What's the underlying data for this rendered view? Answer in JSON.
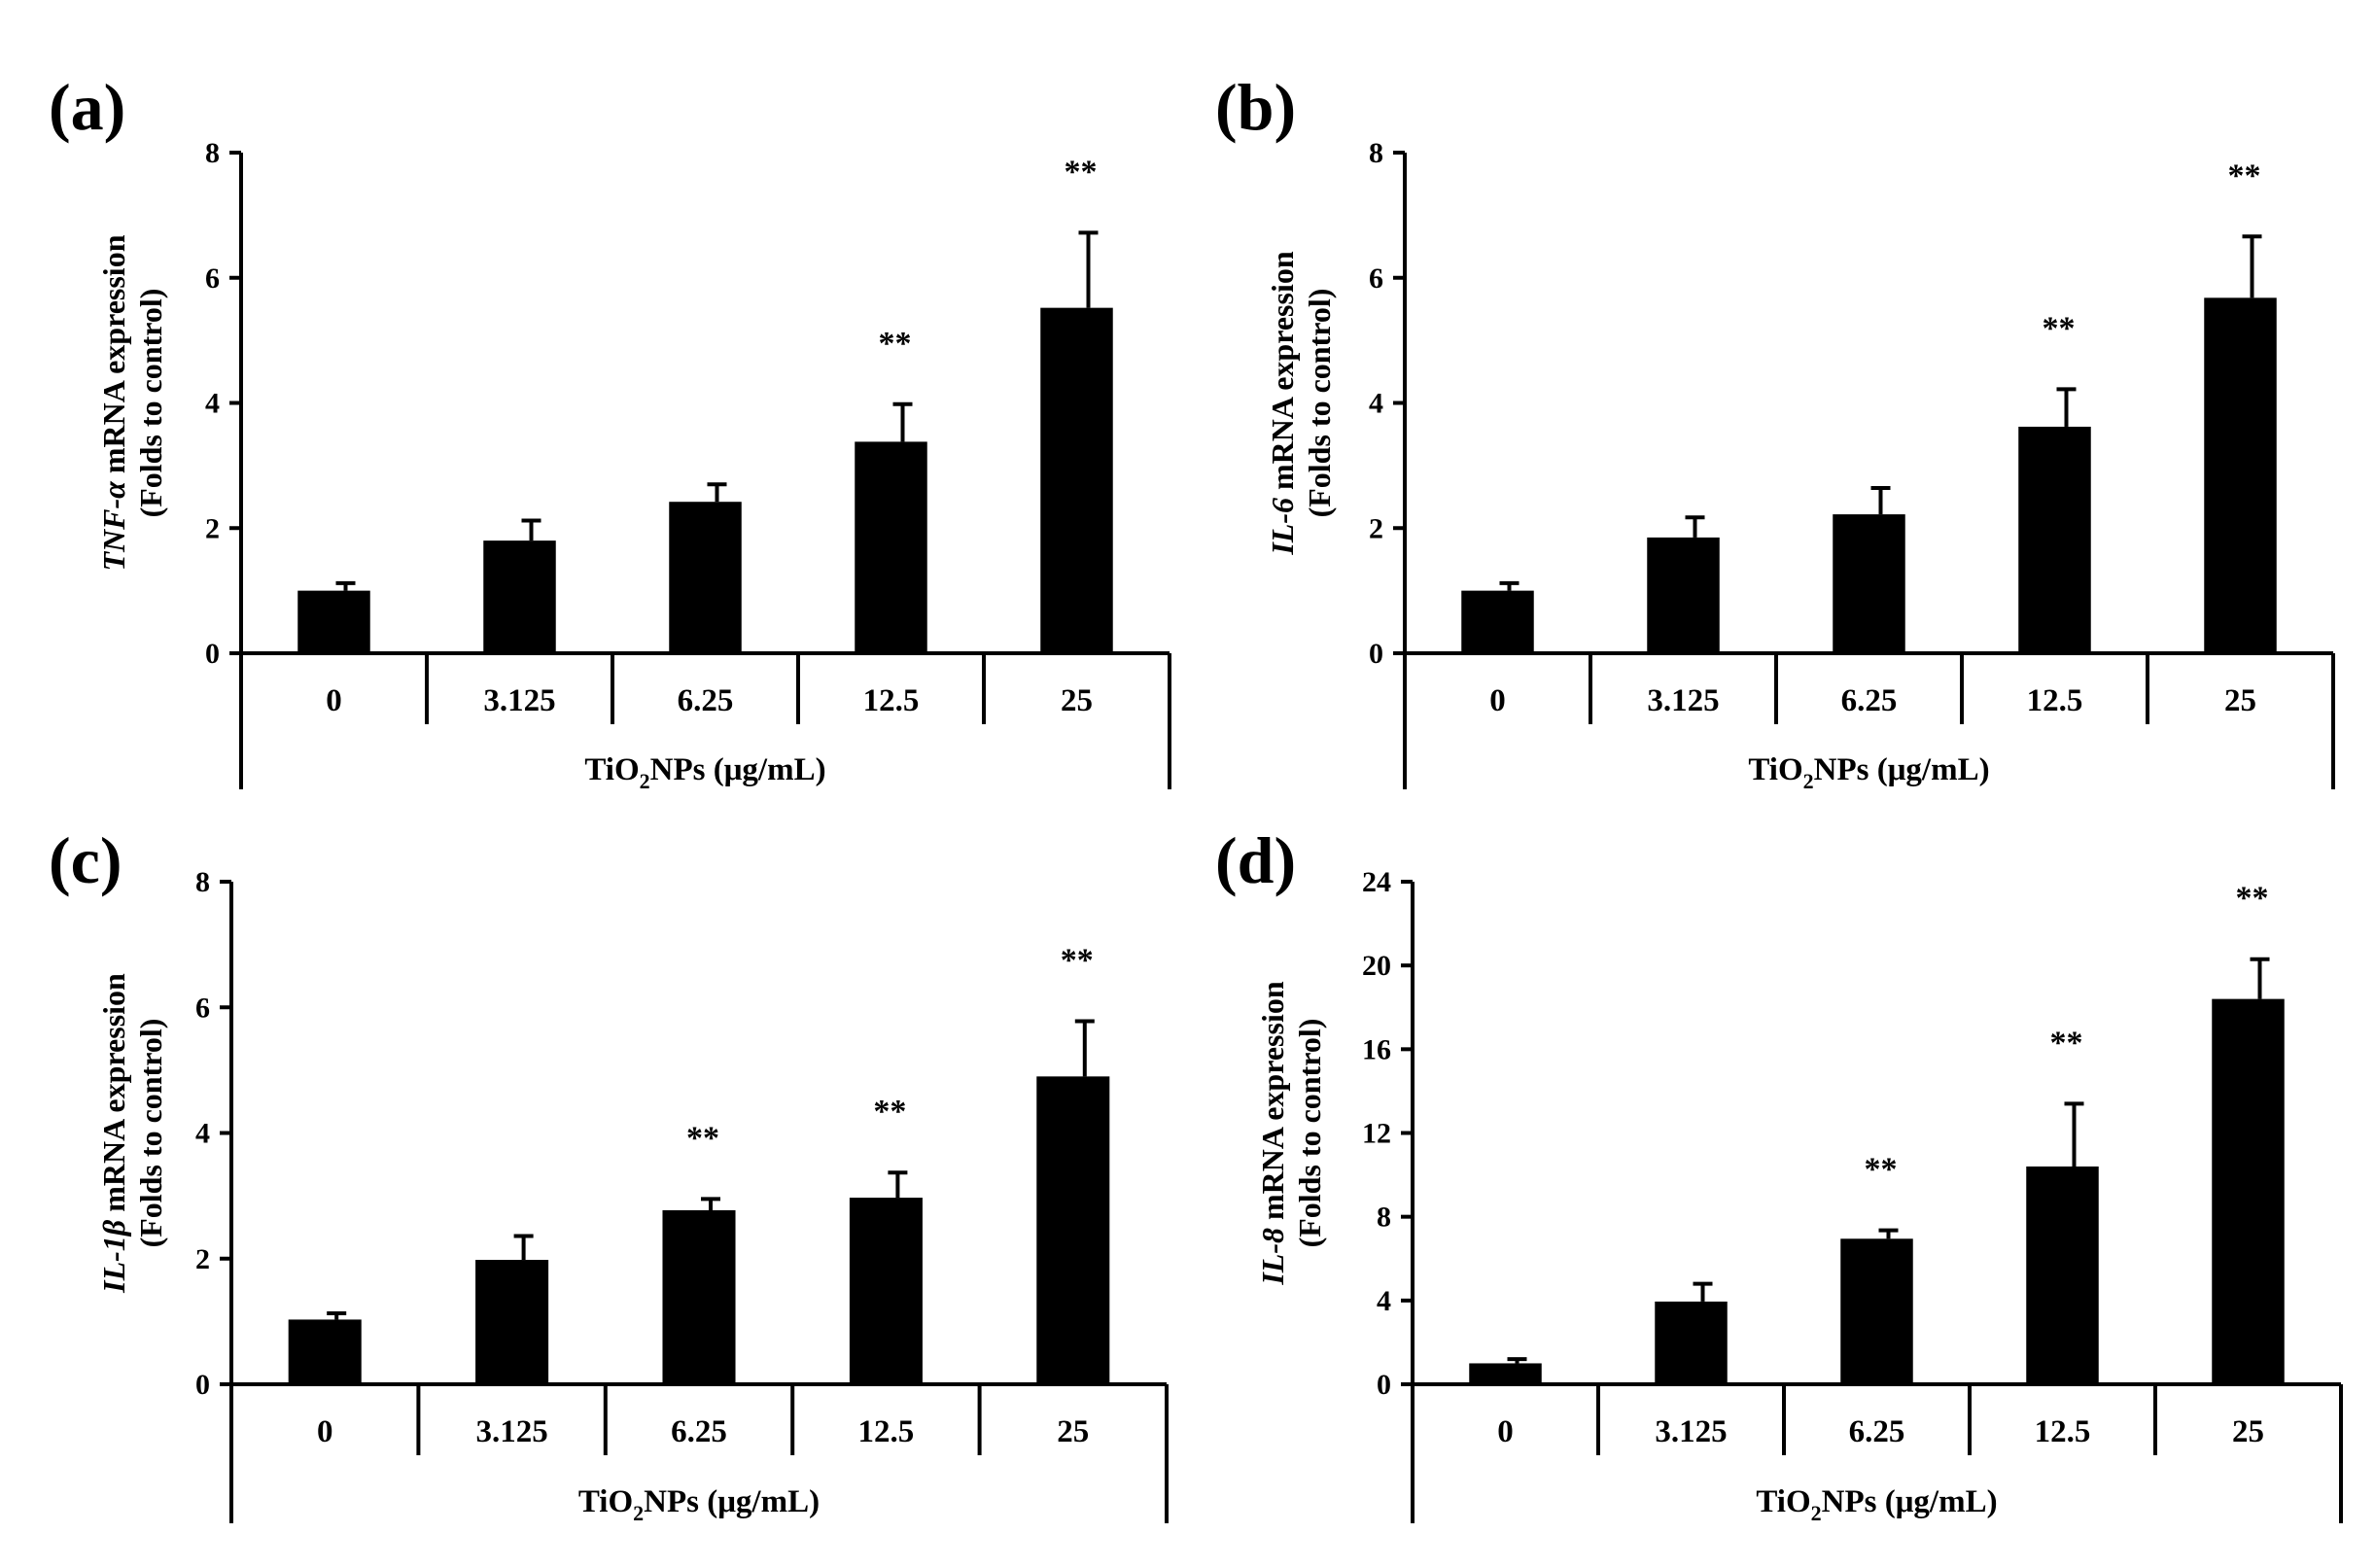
{
  "chart_data": [
    {
      "type": "bar",
      "panel_label": "(a)",
      "gene": "TNF-α",
      "ylabel_rest": " mRNA expression",
      "ylabel_line2": "(Folds to control)",
      "xlabel": {
        "prefix": "TiO",
        "sub": "2",
        "suffix": "NPs (μg/mL)"
      },
      "categories": [
        "0",
        "3.125",
        "6.25",
        "12.5",
        "25"
      ],
      "values": [
        1.0,
        1.8,
        2.42,
        3.38,
        5.52
      ],
      "errors": [
        0.12,
        0.32,
        0.28,
        0.6,
        1.2
      ],
      "significance": [
        "",
        "",
        "",
        "**",
        "**"
      ],
      "ylim": [
        0,
        8
      ],
      "yticks": [
        "0",
        "2",
        "4",
        "6",
        "8"
      ]
    },
    {
      "type": "bar",
      "panel_label": "(b)",
      "gene": "IL-6",
      "ylabel_rest": " mRNA expression",
      "ylabel_line2": "(Folds to control)",
      "xlabel": {
        "prefix": "TiO",
        "sub": "2",
        "suffix": "NPs (μg/mL)"
      },
      "categories": [
        "0",
        "3.125",
        "6.25",
        "12.5",
        "25"
      ],
      "values": [
        1.0,
        1.85,
        2.22,
        3.62,
        5.68
      ],
      "errors": [
        0.12,
        0.32,
        0.42,
        0.6,
        0.98
      ],
      "significance": [
        "",
        "",
        "",
        "**",
        "**"
      ],
      "ylim": [
        0,
        8
      ],
      "yticks": [
        "0",
        "2",
        "4",
        "6",
        "8"
      ]
    },
    {
      "type": "bar",
      "panel_label": "(c)",
      "gene": "IL-1β",
      "ylabel_rest": " mRNA expression",
      "ylabel_line2": "(Folds to control)",
      "xlabel": {
        "prefix": "TiO",
        "sub": "2",
        "suffix": "NPs (μg/mL)"
      },
      "categories": [
        "0",
        "3.125",
        "6.25",
        "12.5",
        "25"
      ],
      "values": [
        1.03,
        1.98,
        2.77,
        2.97,
        4.9
      ],
      "errors": [
        0.1,
        0.38,
        0.18,
        0.4,
        0.88
      ],
      "significance": [
        "",
        "",
        "**",
        "**",
        "**"
      ],
      "ylim": [
        0,
        8
      ],
      "yticks": [
        "0",
        "2",
        "4",
        "6",
        "8"
      ]
    },
    {
      "type": "bar",
      "panel_label": "(d)",
      "gene": "IL-8",
      "ylabel_rest": " mRNA expression",
      "ylabel_line2": "(Folds to control)",
      "xlabel": {
        "prefix": "TiO",
        "sub": "2",
        "suffix": "NPs (μg/mL)"
      },
      "categories": [
        "0",
        "3.125",
        "6.25",
        "12.5",
        "25"
      ],
      "values": [
        1.0,
        3.95,
        6.95,
        10.4,
        18.4
      ],
      "errors": [
        0.2,
        0.85,
        0.4,
        3.0,
        1.9
      ],
      "significance": [
        "",
        "",
        "**",
        "**",
        "**"
      ],
      "ylim": [
        0,
        24
      ],
      "yticks": [
        "0",
        "4",
        "8",
        "12",
        "16",
        "20",
        "24"
      ]
    }
  ]
}
